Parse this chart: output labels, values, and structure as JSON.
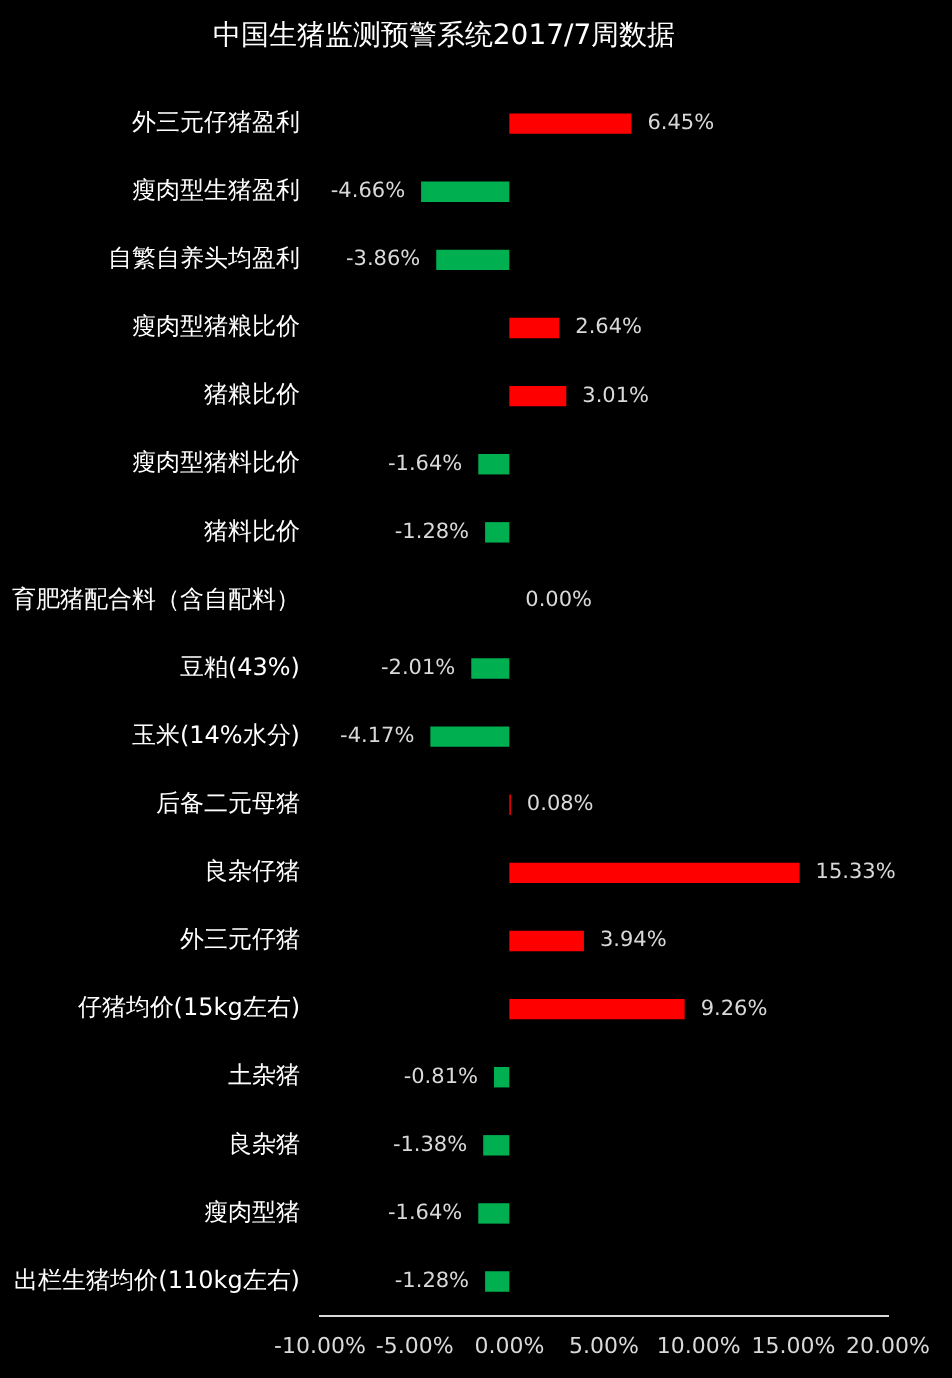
{
  "chart_data": {
    "type": "bar",
    "orientation": "horizontal",
    "title": "中国生猪监测预警系统2017/7周数据",
    "categories": [
      "外三元仔猪盈利",
      "瘦肉型生猪盈利",
      "自繁自养头均盈利",
      "瘦肉型猪粮比价",
      "猪粮比价",
      "瘦肉型猪料比价",
      "猪料比价",
      "育肥猪配合料（含自配料）",
      "豆粕(43%)",
      "玉米(14%水分)",
      "后备二元母猪",
      "良杂仔猪",
      "外三元仔猪",
      "仔猪均价(15kg左右)",
      "土杂猪",
      "良杂猪",
      "瘦肉型猪",
      "出栏生猪均价(110kg左右)"
    ],
    "values": [
      6.45,
      -4.66,
      -3.86,
      2.64,
      3.01,
      -1.64,
      -1.28,
      0.0,
      -2.01,
      -4.17,
      0.08,
      15.33,
      3.94,
      9.26,
      -0.81,
      -1.38,
      -1.64,
      -1.28
    ],
    "colors": [
      "#ff0000",
      "#00b050",
      "#00b050",
      "#ff0000",
      "#ff0000",
      "#00b050",
      "#00b050",
      "#ff0000",
      "#00b050",
      "#00b050",
      "#ff0000",
      "#ff0000",
      "#ff0000",
      "#ff0000",
      "#00b050",
      "#00b050",
      "#00b050",
      "#00b050"
    ],
    "value_labels": [
      "6.45%",
      "-4.66%",
      "-3.86%",
      "2.64%",
      "3.01%",
      "-1.64%",
      "-1.28%",
      "0.00%",
      "-2.01%",
      "-4.17%",
      "0.08%",
      "15.33%",
      "3.94%",
      "9.26%",
      "-0.81%",
      "-1.38%",
      "-1.64%",
      "-1.28%"
    ],
    "xlim": [
      -10,
      20
    ],
    "xticks": [
      {
        "value": -10,
        "label": "-10.00%"
      },
      {
        "value": -5,
        "label": "-5.00%"
      },
      {
        "value": 0,
        "label": "0.00%"
      },
      {
        "value": 5,
        "label": "5.00%"
      },
      {
        "value": 10,
        "label": "10.00%"
      },
      {
        "value": 15,
        "label": "15.00%"
      },
      {
        "value": 20,
        "label": "20.00%"
      }
    ],
    "grid": false,
    "legend": false
  }
}
